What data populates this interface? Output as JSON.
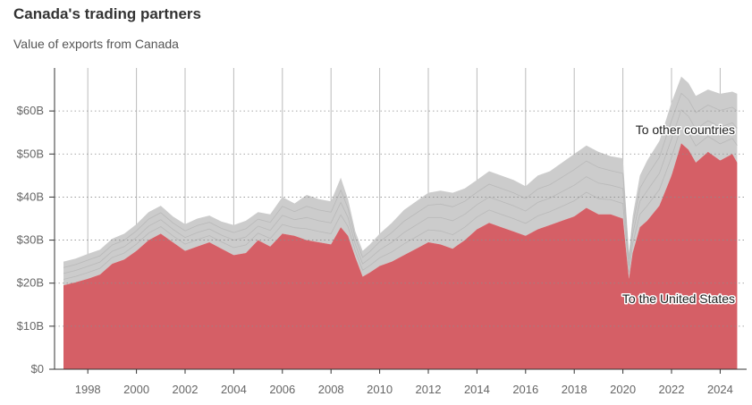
{
  "chart_data": {
    "type": "area",
    "title": "Canada's trading partners",
    "subtitle": "Value of exports from Canada",
    "xlabel": "",
    "ylabel": "",
    "x_range": [
      1997.0,
      2024.7
    ],
    "ylim": [
      0,
      70
    ],
    "y_ticks": [
      0,
      10,
      20,
      30,
      40,
      50,
      60
    ],
    "y_tick_labels": [
      "$0",
      "$10B",
      "$20B",
      "$30B",
      "$40B",
      "$50B",
      "$60B"
    ],
    "x_ticks": [
      1998,
      2000,
      2002,
      2004,
      2006,
      2008,
      2010,
      2012,
      2014,
      2016,
      2018,
      2020,
      2022,
      2024
    ],
    "x_tick_labels": [
      "1998",
      "2000",
      "2002",
      "2004",
      "2006",
      "2008",
      "2010",
      "2012",
      "2014",
      "2016",
      "2018",
      "2020",
      "2022",
      "2024"
    ],
    "grid": "horizontal dotted, vertical year lines",
    "unit": "billions of dollars",
    "series": [
      {
        "name": "To the United States",
        "color": "#d55f66",
        "x": [
          1997.0,
          1997.5,
          1998.0,
          1998.5,
          1999.0,
          1999.5,
          2000.0,
          2000.5,
          2001.0,
          2001.5,
          2002.0,
          2002.5,
          2003.0,
          2003.5,
          2004.0,
          2004.5,
          2005.0,
          2005.5,
          2006.0,
          2006.5,
          2007.0,
          2007.5,
          2008.0,
          2008.4,
          2008.7,
          2009.0,
          2009.3,
          2009.6,
          2010.0,
          2010.5,
          2011.0,
          2011.5,
          2012.0,
          2012.5,
          2013.0,
          2013.5,
          2014.0,
          2014.5,
          2015.0,
          2015.5,
          2016.0,
          2016.5,
          2017.0,
          2017.5,
          2018.0,
          2018.5,
          2019.0,
          2019.5,
          2020.0,
          2020.25,
          2020.4,
          2020.7,
          2021.0,
          2021.5,
          2022.0,
          2022.4,
          2022.7,
          2023.0,
          2023.5,
          2024.0,
          2024.5,
          2024.7
        ],
        "values": [
          19.5,
          20.2,
          21.0,
          22.0,
          24.5,
          25.5,
          27.5,
          30.0,
          31.5,
          29.5,
          27.5,
          28.5,
          29.5,
          28.0,
          26.5,
          27.0,
          30.0,
          28.5,
          31.5,
          31.0,
          30.0,
          29.5,
          29.0,
          33.0,
          31.0,
          26.0,
          21.5,
          22.5,
          24.0,
          25.0,
          26.5,
          28.0,
          29.5,
          29.0,
          28.0,
          30.0,
          32.5,
          34.0,
          33.0,
          32.0,
          31.0,
          32.5,
          33.5,
          34.5,
          35.5,
          37.5,
          36.0,
          36.0,
          35.0,
          21.0,
          27.0,
          33.0,
          34.5,
          38.0,
          45.0,
          52.5,
          51.0,
          48.0,
          50.5,
          48.5,
          50.0,
          48.0
        ]
      },
      {
        "name": "To other countries",
        "color": "#cccccc",
        "x": [
          1997.0,
          1997.5,
          1998.0,
          1998.5,
          1999.0,
          1999.5,
          2000.0,
          2000.5,
          2001.0,
          2001.5,
          2002.0,
          2002.5,
          2003.0,
          2003.5,
          2004.0,
          2004.5,
          2005.0,
          2005.5,
          2006.0,
          2006.5,
          2007.0,
          2007.5,
          2008.0,
          2008.4,
          2008.7,
          2009.0,
          2009.3,
          2009.6,
          2010.0,
          2010.5,
          2011.0,
          2011.5,
          2012.0,
          2012.5,
          2013.0,
          2013.5,
          2014.0,
          2014.5,
          2015.0,
          2015.5,
          2016.0,
          2016.5,
          2017.0,
          2017.5,
          2018.0,
          2018.5,
          2019.0,
          2019.5,
          2020.0,
          2020.25,
          2020.4,
          2020.7,
          2021.0,
          2021.5,
          2022.0,
          2022.4,
          2022.7,
          2023.0,
          2023.5,
          2024.0,
          2024.5,
          2024.7
        ],
        "values": [
          5.5,
          5.5,
          5.8,
          5.8,
          5.8,
          6.0,
          6.2,
          6.5,
          6.5,
          6.0,
          6.2,
          6.5,
          6.2,
          6.3,
          7.0,
          7.5,
          6.5,
          7.5,
          8.5,
          7.5,
          10.5,
          10.0,
          10.0,
          11.5,
          8.5,
          6.0,
          6.0,
          6.5,
          7.5,
          9.0,
          10.5,
          11.0,
          11.5,
          12.5,
          13.0,
          12.0,
          11.5,
          12.0,
          12.0,
          12.0,
          11.5,
          12.5,
          12.5,
          13.5,
          14.5,
          14.5,
          14.5,
          13.5,
          14.0,
          6.0,
          8.5,
          12.0,
          14.0,
          15.0,
          17.0,
          15.5,
          15.5,
          15.5,
          14.5,
          15.5,
          14.5,
          16.0
        ]
      }
    ],
    "annotations": [
      {
        "text": "To other countries",
        "series": "To other countries"
      },
      {
        "text": "To the United States",
        "series": "To the United States"
      }
    ]
  }
}
